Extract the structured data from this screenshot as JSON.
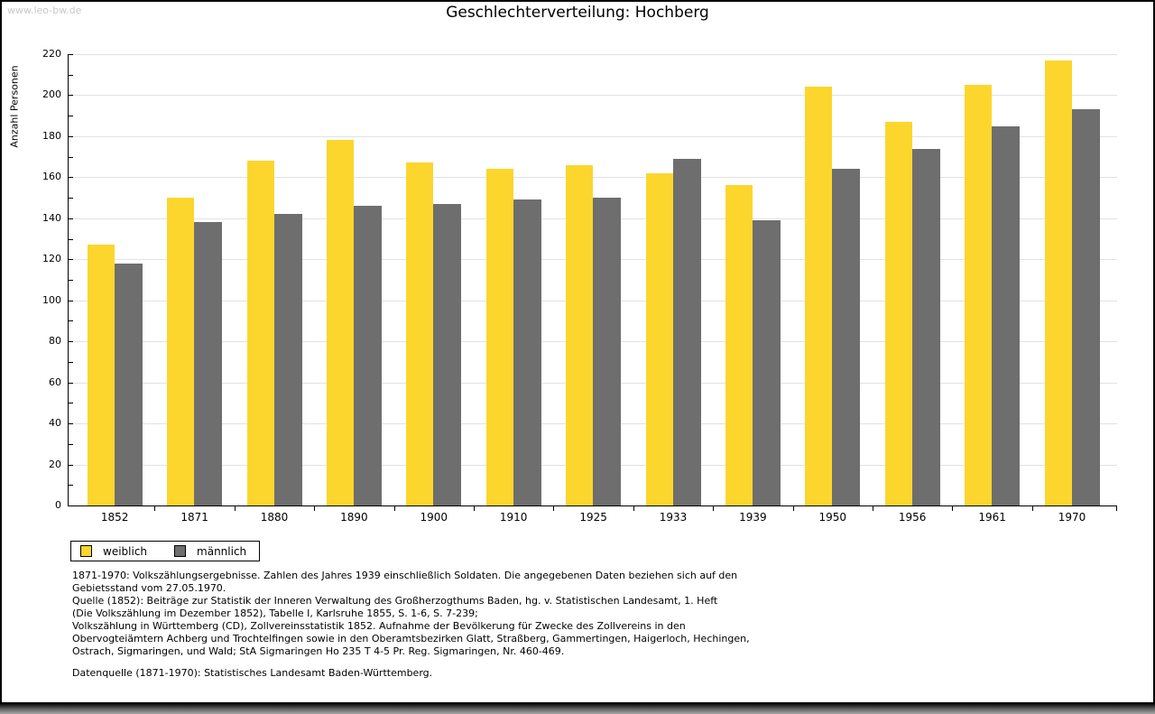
{
  "watermark": "www.leo-bw.de",
  "header": {
    "title": "Geschlechterverteilung: Hochberg"
  },
  "chart_data": {
    "type": "bar",
    "title": "Geschlechterverteilung: Hochberg",
    "xlabel": "",
    "ylabel": "Anzahl Personen",
    "categories": [
      "1852",
      "1871",
      "1880",
      "1890",
      "1900",
      "1910",
      "1925",
      "1933",
      "1939",
      "1950",
      "1956",
      "1961",
      "1970"
    ],
    "series": [
      {
        "name": "weiblich",
        "color": "#fcd62d",
        "values": [
          127,
          150,
          168,
          178,
          167,
          164,
          166,
          162,
          156,
          204,
          187,
          205,
          217
        ]
      },
      {
        "name": "männlich",
        "color": "#6e6e6e",
        "values": [
          118,
          138,
          142,
          146,
          147,
          149,
          150,
          169,
          139,
          164,
          174,
          185,
          193
        ]
      }
    ],
    "ylim": [
      0,
      220
    ],
    "ytick_step": 20,
    "yminor_step": 10,
    "grid": true,
    "gridline_color": "#e2e2e2",
    "legend_position": "bottom-left"
  },
  "legend": {
    "items": [
      {
        "label": "weiblich",
        "color": "#fcd62d"
      },
      {
        "label": "männlich",
        "color": "#6e6e6e"
      }
    ]
  },
  "footer": {
    "notes_lines": [
      "1871-1970: Volkszählungsergebnisse. Zahlen des Jahres 1939 einschließlich Soldaten. Die angegebenen Daten beziehen sich auf den",
      "Gebietsstand vom 27.05.1970.",
      "Quelle (1852): Beiträge zur Statistik der Inneren Verwaltung des Großherzogthums Baden, hg. v. Statistischen Landesamt, 1. Heft",
      "(Die Volkszählung im Dezember 1852), Tabelle I, Karlsruhe 1855, S. 1-6, S. 7-239;",
      "Volkszählung in Württemberg (CD), Zollvereinsstatistik 1852. Aufnahme der Bevölkerung für Zwecke des Zollvereins in den",
      "Obervogteiämtern Achberg und Trochtelfingen sowie in den Oberamtsbezirken Glatt, Straßberg, Gammertingen, Haigerloch, Hechingen,",
      "Ostrach, Sigmaringen, und Wald; StA Sigmaringen Ho 235 T 4-5 Pr. Reg. Sigmaringen, Nr. 460-469."
    ],
    "datasource": "Datenquelle (1871-1970): Statistisches Landesamt Baden-Württemberg."
  },
  "colors": {
    "weiblich": "#fcd62d",
    "männlich": "#6e6e6e",
    "gridline": "#e2e2e2",
    "watermark": "#c9c9c9",
    "axis": "#000000"
  }
}
